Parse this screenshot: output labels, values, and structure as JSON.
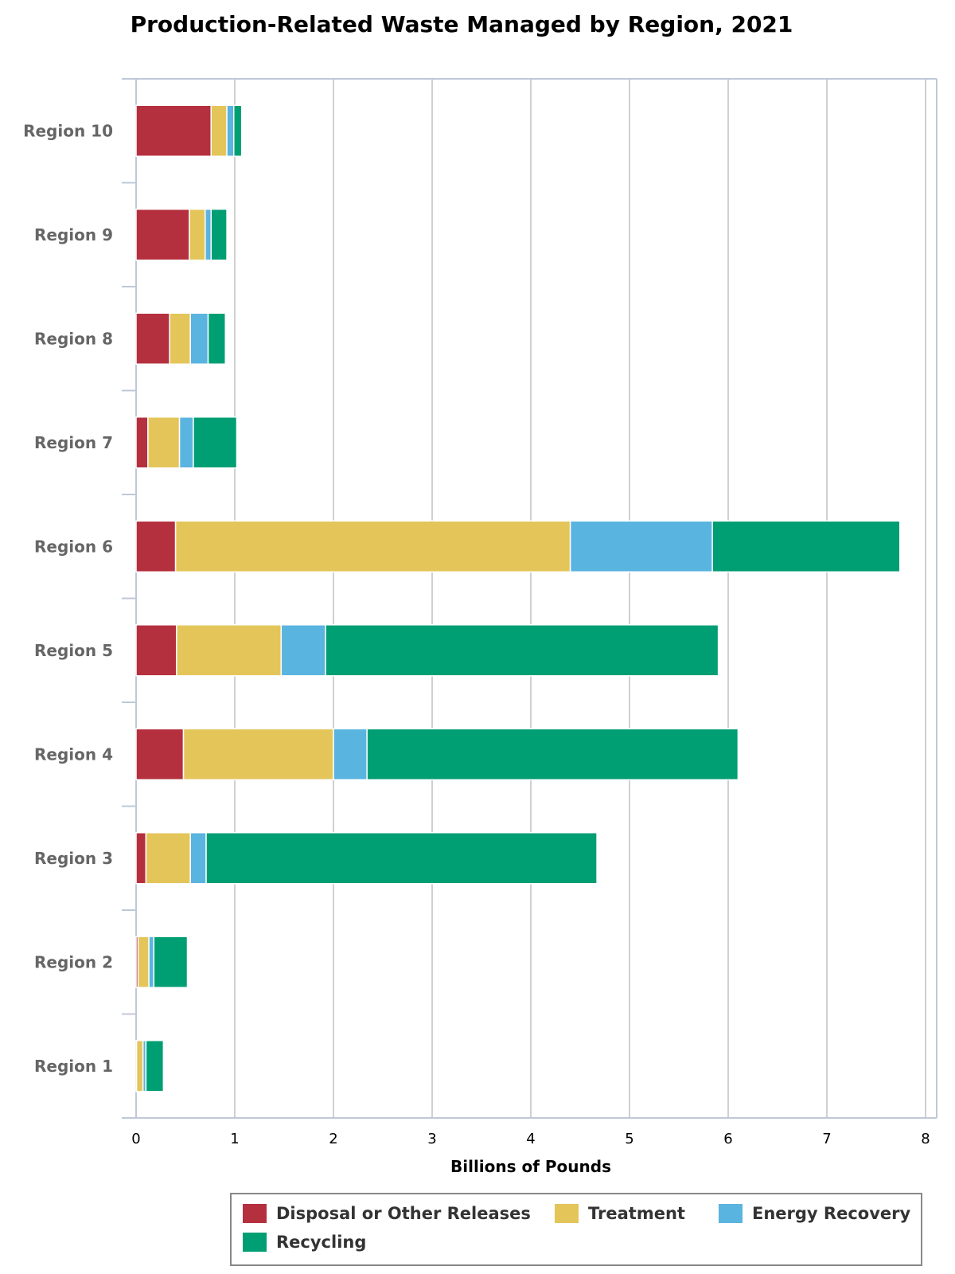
{
  "chart_data": {
    "type": "bar",
    "orientation": "horizontal",
    "stacked": true,
    "title": "Production-Related Waste Managed by Region, 2021",
    "xlabel": "Billions of Pounds",
    "ylabel": "",
    "xlim": [
      0,
      8
    ],
    "xticks": [
      "0",
      "1",
      "2",
      "3",
      "4",
      "5",
      "6",
      "7",
      "8"
    ],
    "grid": true,
    "legend_position": "bottom",
    "categories": [
      "Region 10",
      "Region 9",
      "Region 8",
      "Region 7",
      "Region 6",
      "Region 5",
      "Region 4",
      "Region 3",
      "Region 2",
      "Region 1"
    ],
    "series": [
      {
        "name": "Disposal or Other Releases",
        "color": "#b5303f",
        "values": [
          0.76,
          0.54,
          0.34,
          0.12,
          0.4,
          0.41,
          0.48,
          0.1,
          0.02,
          0.005
        ]
      },
      {
        "name": "Treatment",
        "color": "#e4c55a",
        "values": [
          0.16,
          0.16,
          0.21,
          0.32,
          4.0,
          1.06,
          1.52,
          0.45,
          0.11,
          0.065
        ]
      },
      {
        "name": "Energy Recovery",
        "color": "#5ab4e0",
        "values": [
          0.07,
          0.06,
          0.18,
          0.14,
          1.44,
          0.45,
          0.34,
          0.16,
          0.05,
          0.03
        ]
      },
      {
        "name": "Recycling",
        "color": "#009e73",
        "values": [
          0.08,
          0.16,
          0.175,
          0.44,
          1.9,
          3.98,
          3.76,
          3.96,
          0.34,
          0.177
        ]
      }
    ]
  }
}
